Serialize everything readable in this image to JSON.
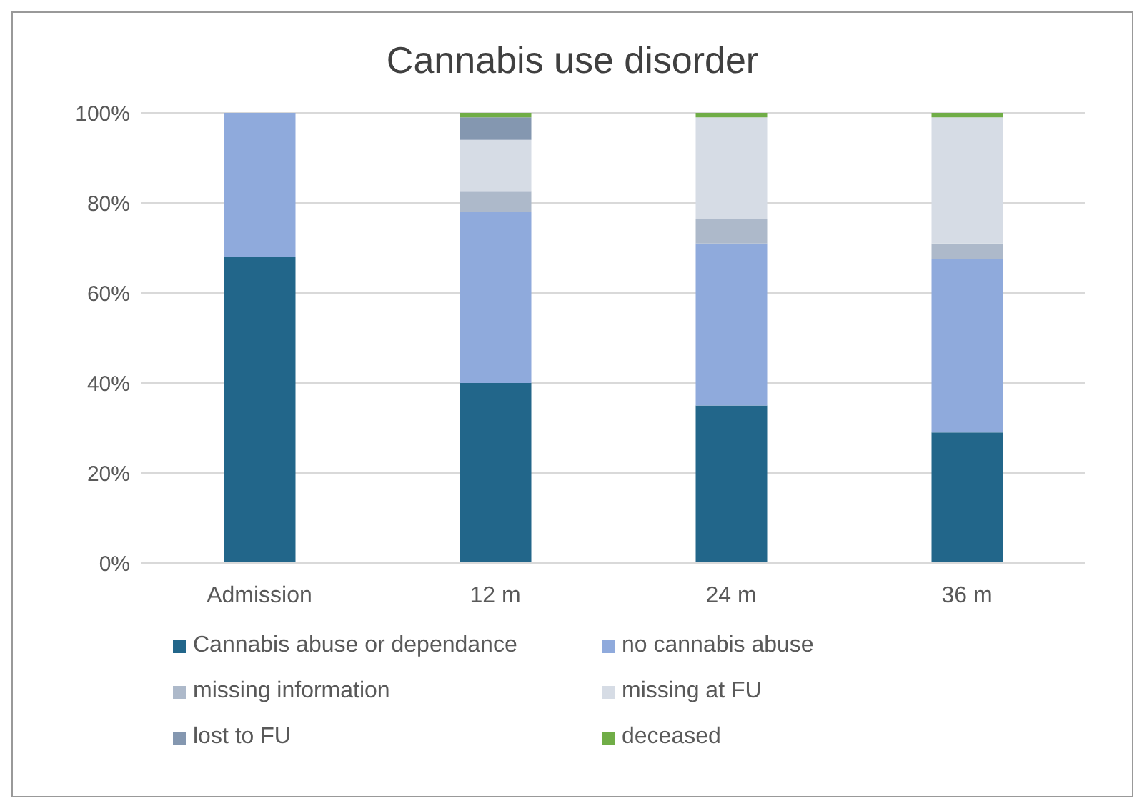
{
  "chart_data": {
    "type": "bar",
    "title": "Cannabis use disorder",
    "stacked": true,
    "categories": [
      "Admission",
      "12 m",
      "24 m",
      "36 m"
    ],
    "series": [
      {
        "name": "Cannabis abuse or dependance",
        "color": "#22668a",
        "values": [
          68,
          40,
          35,
          29
        ]
      },
      {
        "name": "no cannabis abuse",
        "color": "#8faadc",
        "values": [
          32,
          38,
          36,
          38.5
        ]
      },
      {
        "name": "missing information",
        "color": "#adb9ca",
        "values": [
          0,
          4.5,
          5.5,
          3.5
        ]
      },
      {
        "name": "missing at FU",
        "color": "#d6dce5",
        "values": [
          0,
          11.5,
          22.5,
          28
        ]
      },
      {
        "name": "lost to FU",
        "color": "#8497b0",
        "values": [
          0,
          5,
          0,
          0
        ]
      },
      {
        "name": "deceased",
        "color": "#70ad47",
        "values": [
          0,
          1,
          1,
          1
        ]
      }
    ],
    "ylim": [
      0,
      100
    ],
    "yticks": [
      {
        "value": 0,
        "label": "0%"
      },
      {
        "value": 20,
        "label": "20%"
      },
      {
        "value": 40,
        "label": "40%"
      },
      {
        "value": 60,
        "label": "60%"
      },
      {
        "value": 80,
        "label": "80%"
      },
      {
        "value": 100,
        "label": "100%"
      }
    ],
    "grid": "y",
    "legend": "bottom"
  }
}
